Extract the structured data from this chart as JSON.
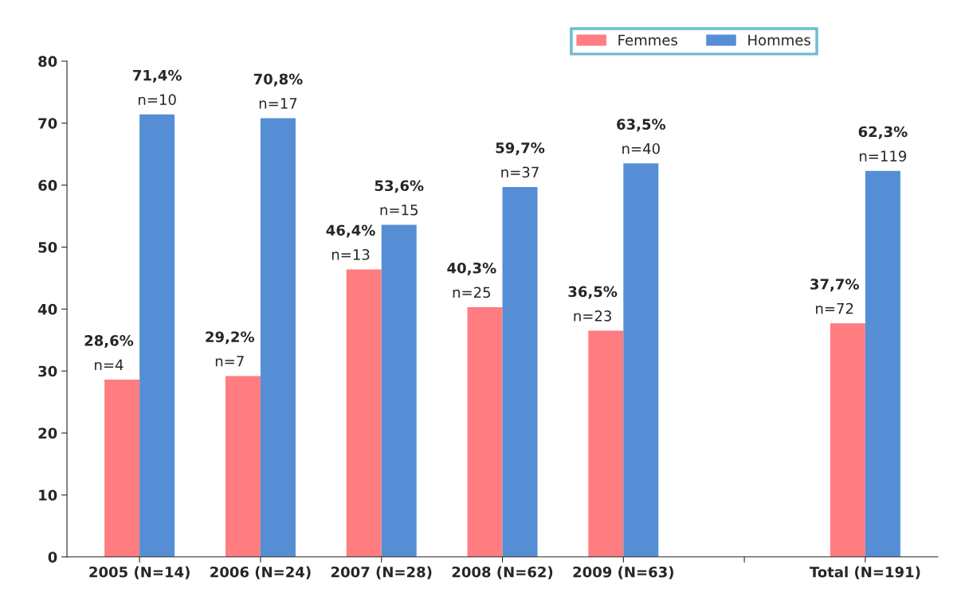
{
  "chart_data": {
    "type": "bar",
    "categories": [
      "2005 (N=14)",
      "2006 (N=24)",
      "2007 (N=28)",
      "2008 (N=62)",
      "2009 (N=63)",
      null,
      "Total (N=191)"
    ],
    "series": [
      {
        "name": "Femmes",
        "color": "#ff7c80",
        "values": [
          28.6,
          29.2,
          46.4,
          40.3,
          36.5,
          null,
          37.7
        ],
        "value_labels": [
          "28,6%\nn=4",
          "29,2%\nn=7",
          "46,4%\nn=13",
          "40,3%\nn=25",
          "36,5%\nn=23",
          null,
          "37,7%\nn=72"
        ]
      },
      {
        "name": "Hommes",
        "color": "#558ed5",
        "values": [
          71.4,
          70.8,
          53.6,
          59.7,
          63.5,
          null,
          62.3
        ],
        "value_labels": [
          "71,4%\nn=10",
          "70,8%\nn=17",
          "53,6%\nn=15",
          "59,7%\nn=37",
          "63,5%\nn=40",
          null,
          "62,3%\nn=119"
        ]
      }
    ],
    "ylim": [
      0,
      80
    ],
    "yticks": [
      0,
      10,
      20,
      30,
      40,
      50,
      60,
      70,
      80
    ],
    "grid": false,
    "legend": "top"
  }
}
